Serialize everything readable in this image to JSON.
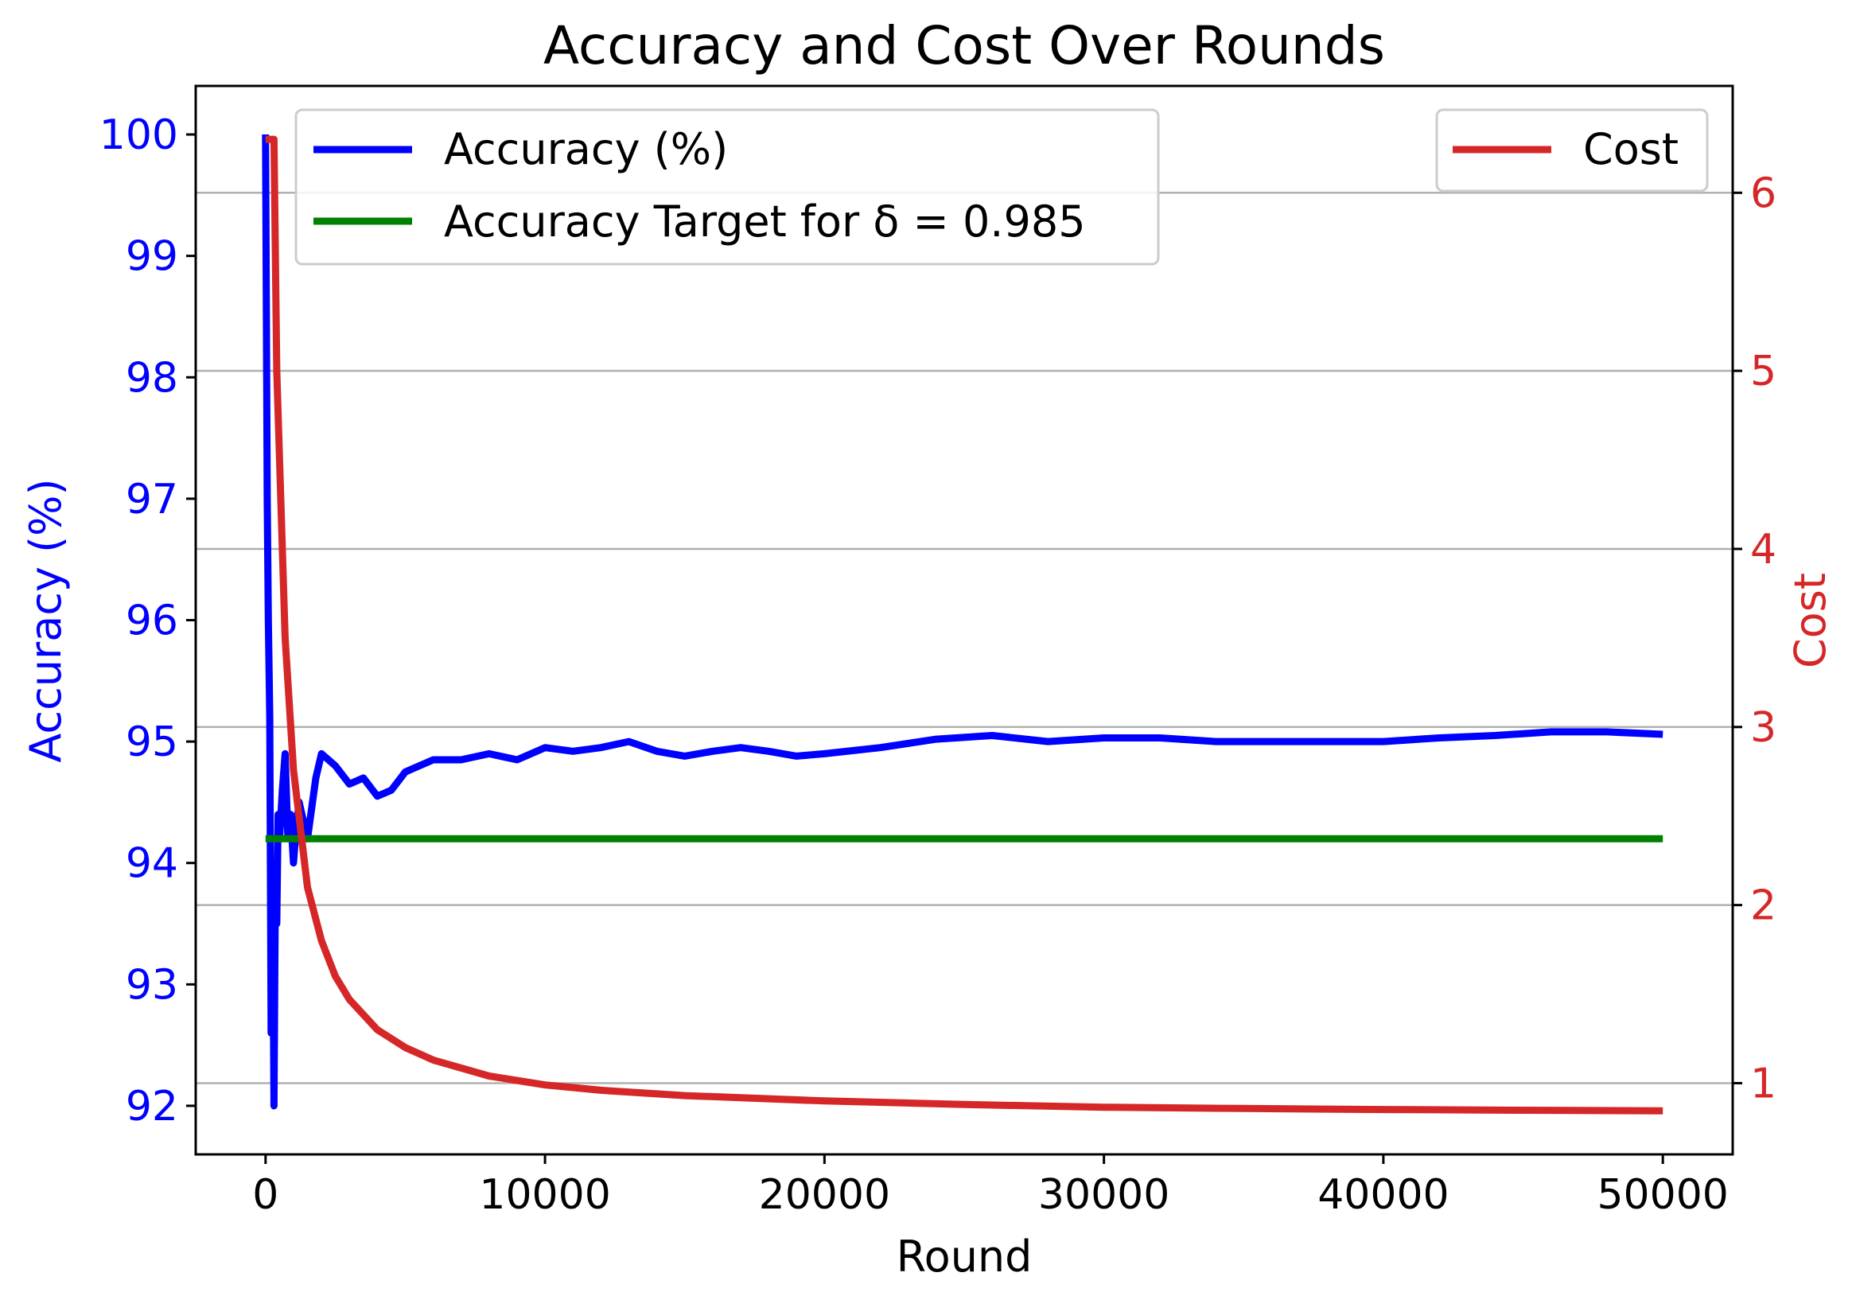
{
  "chart_data": {
    "type": "line",
    "title": "Accuracy and Cost Over Rounds",
    "xlabel": "Round",
    "ylabel_left": "Accuracy (%)",
    "ylabel_right": "Cost",
    "xlim": [
      -2500,
      52500
    ],
    "ylim_left": [
      91.6,
      100.4
    ],
    "ylim_right": [
      0.6,
      6.6
    ],
    "x_ticks": [
      "0",
      "10000",
      "20000",
      "30000",
      "40000",
      "50000"
    ],
    "y_ticks_left": [
      "92",
      "93",
      "94",
      "95",
      "96",
      "97",
      "98",
      "99",
      "100"
    ],
    "y_ticks_right": [
      "1",
      "2",
      "3",
      "4",
      "5",
      "6"
    ],
    "grid": "horizontal lines at right-axis ticks",
    "legend_left": "top-left",
    "legend_right": "top-right",
    "series": [
      {
        "name": "Accuracy (%)",
        "axis": "left",
        "color": "#0000ff",
        "x": [
          0,
          60,
          100,
          150,
          200,
          250,
          300,
          350,
          400,
          450,
          500,
          600,
          700,
          800,
          900,
          1000,
          1100,
          1200,
          1500,
          1800,
          2000,
          2500,
          3000,
          3500,
          4000,
          4500,
          5000,
          6000,
          7000,
          8000,
          9000,
          10000,
          11000,
          12000,
          13000,
          14000,
          15000,
          16000,
          17000,
          18000,
          19000,
          20000,
          22000,
          24000,
          26000,
          28000,
          30000,
          32000,
          34000,
          36000,
          38000,
          40000,
          42000,
          44000,
          46000,
          48000,
          50000
        ],
        "y": [
          100,
          97.0,
          96.0,
          95.2,
          92.6,
          94.0,
          92.0,
          93.8,
          93.5,
          94.4,
          94.2,
          94.6,
          94.9,
          94.2,
          94.4,
          94.0,
          94.3,
          94.5,
          94.2,
          94.7,
          94.9,
          94.8,
          94.65,
          94.7,
          94.55,
          94.6,
          94.75,
          94.85,
          94.85,
          94.9,
          94.85,
          94.95,
          94.92,
          94.95,
          95.0,
          94.92,
          94.88,
          94.92,
          94.95,
          94.92,
          94.88,
          94.9,
          94.95,
          95.02,
          95.05,
          95.0,
          95.03,
          95.03,
          95.0,
          95.0,
          95.0,
          95.0,
          95.03,
          95.05,
          95.08,
          95.08,
          95.06
        ]
      },
      {
        "name": "Accuracy Target for δ = 0.985",
        "axis": "left",
        "color": "#008000",
        "x": [
          0,
          50000
        ],
        "y": [
          94.2,
          94.2
        ]
      },
      {
        "name": "Cost",
        "axis": "right",
        "color": "#d62728",
        "x": [
          0,
          300,
          400,
          500,
          700,
          1000,
          1500,
          2000,
          2500,
          3000,
          4000,
          5000,
          6000,
          8000,
          10000,
          12000,
          15000,
          20000,
          25000,
          30000,
          35000,
          40000,
          45000,
          50000
        ],
        "y": [
          6.3,
          6.3,
          5.0,
          4.5,
          3.5,
          2.76,
          2.1,
          1.8,
          1.6,
          1.47,
          1.3,
          1.2,
          1.13,
          1.04,
          0.99,
          0.96,
          0.93,
          0.9,
          0.88,
          0.865,
          0.858,
          0.852,
          0.848,
          0.845
        ]
      }
    ]
  }
}
